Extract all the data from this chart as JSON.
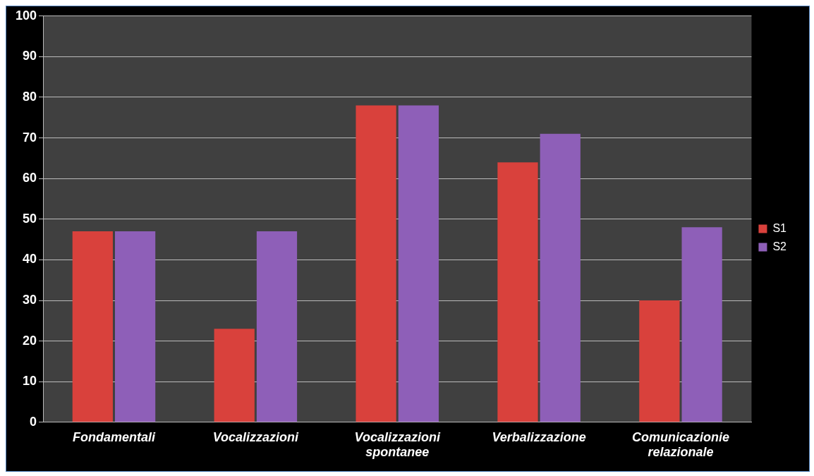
{
  "chart_data": {
    "type": "bar",
    "categories": [
      "Fondamentali",
      "Vocalizzazioni",
      "Vocalizzazioni spontanee",
      "Verbalizzazione",
      "Comunicazionie relazionale"
    ],
    "series": [
      {
        "name": "S1",
        "color": "#d9413c",
        "values": [
          47,
          23,
          78,
          64,
          30
        ]
      },
      {
        "name": "S2",
        "color": "#8e5fb8",
        "values": [
          47,
          47,
          78,
          71,
          48
        ]
      }
    ],
    "ylim": [
      0,
      100
    ],
    "yticks": [
      0,
      10,
      20,
      30,
      40,
      50,
      60,
      70,
      80,
      90,
      100
    ],
    "grid": "y",
    "legend": "right"
  }
}
